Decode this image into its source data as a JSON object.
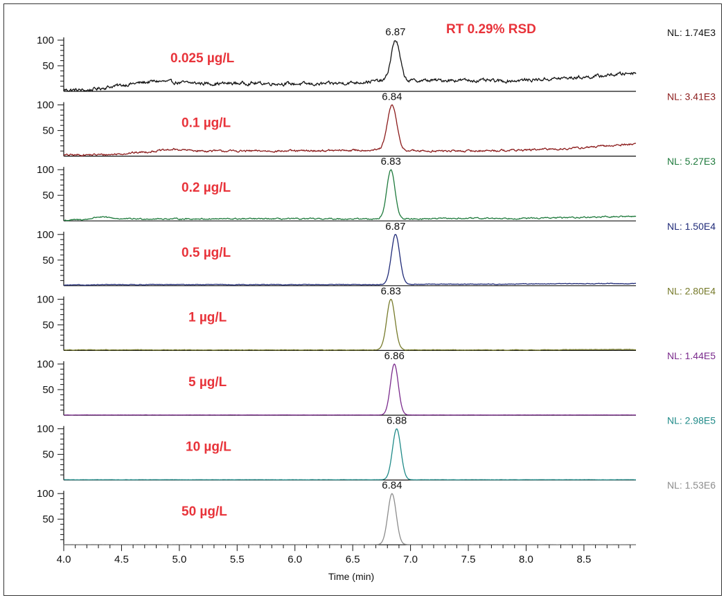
{
  "chart_data": {
    "type": "line",
    "annotation": "RT 0.29% RSD",
    "xlabel": "Time (min)",
    "xlim": [
      4.0,
      8.95
    ],
    "x_ticks": [
      "4.0",
      "4.5",
      "5.0",
      "5.5",
      "6.0",
      "6.5",
      "7.0",
      "7.5",
      "8.0",
      "8.5"
    ],
    "y_ticks": [
      "100",
      "50"
    ],
    "ylim": [
      0,
      100
    ],
    "grid": false,
    "series": [
      {
        "name": "0.025 µg/L",
        "nl": "NL: 1.74E3",
        "peak_label": "6.87",
        "peak_rt": 6.87,
        "color": "#111111",
        "baseline": [
          [
            4.0,
            3
          ],
          [
            4.2,
            2
          ],
          [
            4.4,
            9
          ],
          [
            4.6,
            15
          ],
          [
            4.8,
            20
          ],
          [
            5.0,
            17
          ],
          [
            5.3,
            15
          ],
          [
            5.6,
            16
          ],
          [
            5.9,
            15
          ],
          [
            6.2,
            14
          ],
          [
            6.5,
            17
          ],
          [
            6.7,
            20
          ],
          [
            7.1,
            21
          ],
          [
            7.4,
            22
          ],
          [
            7.8,
            20
          ],
          [
            8.2,
            24
          ],
          [
            8.6,
            29
          ],
          [
            8.95,
            37
          ]
        ],
        "noise": 2.6,
        "peak_sigma": 0.038
      },
      {
        "name": "0.1 µg/L",
        "nl": "NL: 3.41E3",
        "peak_label": "6.84",
        "peak_rt": 6.84,
        "color": "#8b1a1a",
        "baseline": [
          [
            4.0,
            2
          ],
          [
            4.4,
            3
          ],
          [
            4.7,
            8
          ],
          [
            4.95,
            13
          ],
          [
            5.2,
            10
          ],
          [
            5.6,
            10
          ],
          [
            6.0,
            10
          ],
          [
            6.4,
            11
          ],
          [
            6.7,
            12
          ],
          [
            7.1,
            10
          ],
          [
            7.5,
            10
          ],
          [
            8.0,
            12
          ],
          [
            8.4,
            15
          ],
          [
            8.95,
            24
          ]
        ],
        "noise": 1.5,
        "peak_sigma": 0.04
      },
      {
        "name": "0.2 µg/L",
        "nl": "NL: 5.27E3",
        "peak_label": "6.83",
        "peak_rt": 6.83,
        "color": "#1e7a3c",
        "baseline": [
          [
            4.0,
            1
          ],
          [
            4.2,
            3
          ],
          [
            4.3,
            8
          ],
          [
            4.5,
            4
          ],
          [
            5.0,
            4
          ],
          [
            6.0,
            4
          ],
          [
            6.6,
            4
          ],
          [
            7.0,
            4
          ],
          [
            7.5,
            5
          ],
          [
            8.0,
            5
          ],
          [
            8.5,
            7
          ],
          [
            8.95,
            9
          ]
        ],
        "noise": 1.0,
        "peak_sigma": 0.035
      },
      {
        "name": "0.5 µg/L",
        "nl": "NL: 1.50E4",
        "peak_label": "6.87",
        "peak_rt": 6.87,
        "color": "#1f2a78",
        "baseline": [
          [
            4.0,
            1
          ],
          [
            4.5,
            2
          ],
          [
            5.0,
            2
          ],
          [
            6.0,
            2
          ],
          [
            6.7,
            2
          ],
          [
            7.2,
            3
          ],
          [
            7.8,
            3
          ],
          [
            8.4,
            4
          ],
          [
            8.95,
            4
          ]
        ],
        "noise": 0.5,
        "peak_sigma": 0.036
      },
      {
        "name": "1 µg/L",
        "nl": "NL: 2.80E4",
        "peak_label": "6.83",
        "peak_rt": 6.83,
        "color": "#767a2a",
        "baseline": [
          [
            4.0,
            1
          ],
          [
            5.0,
            1
          ],
          [
            6.0,
            1
          ],
          [
            6.7,
            1
          ],
          [
            7.2,
            1
          ],
          [
            8.0,
            1
          ],
          [
            8.95,
            2
          ]
        ],
        "noise": 0.4,
        "peak_sigma": 0.036
      },
      {
        "name": "5 µg/L",
        "nl": "NL: 1.44E5",
        "peak_label": "6.86",
        "peak_rt": 6.86,
        "color": "#7a2a8c",
        "baseline": [
          [
            4.0,
            0.5
          ],
          [
            8.95,
            0.5
          ]
        ],
        "noise": 0.15,
        "peak_sigma": 0.034
      },
      {
        "name": "10 µg/L",
        "nl": "NL: 2.98E5",
        "peak_label": "6.88",
        "peak_rt": 6.88,
        "color": "#1f8a88",
        "baseline": [
          [
            4.0,
            0.5
          ],
          [
            8.95,
            0.5
          ]
        ],
        "noise": 0.15,
        "peak_sigma": 0.036
      },
      {
        "name": "50 µg/L",
        "nl": "NL: 1.53E6",
        "peak_label": "6.84",
        "peak_rt": 6.84,
        "color": "#8c8c8c",
        "baseline": [
          [
            4.0,
            0.3
          ],
          [
            8.95,
            0.3
          ]
        ],
        "noise": 0.1,
        "peak_sigma": 0.036
      }
    ]
  }
}
